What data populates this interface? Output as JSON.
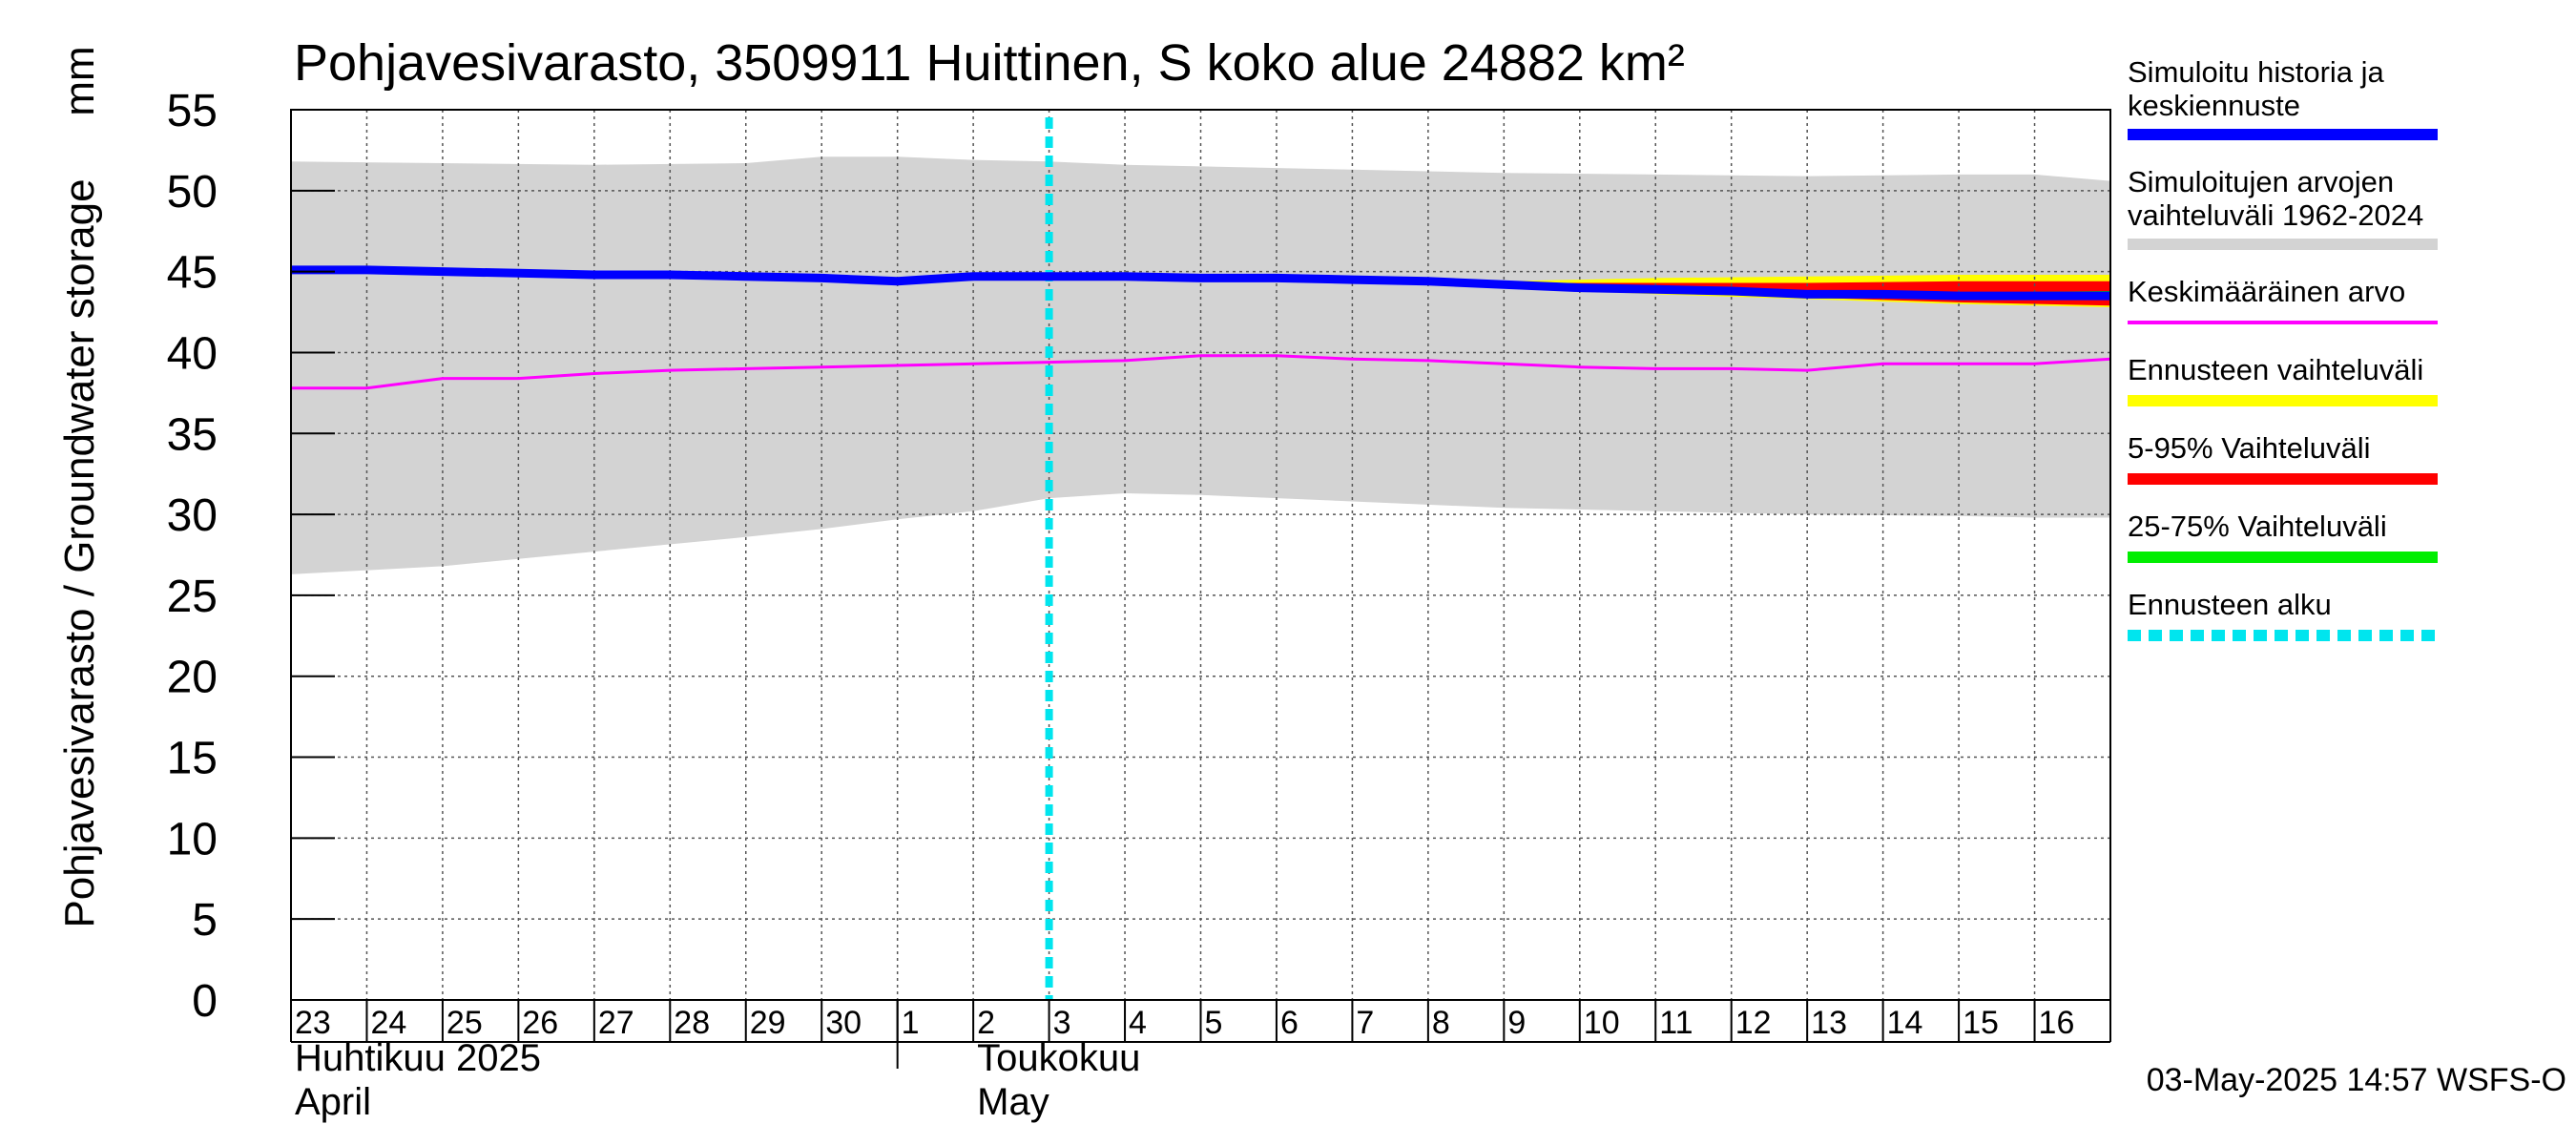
{
  "chart_data": {
    "type": "area+line",
    "title": "Pohjavesivarasto, 3509911 Huittinen, S koko alue 24882 km²",
    "ylabel": "Pohjavesivarasto / Groundwater storage",
    "yunit": "mm",
    "ylim": [
      0,
      55
    ],
    "yticks": [
      0,
      5,
      10,
      15,
      20,
      25,
      30,
      35,
      40,
      45,
      50,
      55
    ],
    "xlim": [
      0,
      24
    ],
    "day_labels": [
      "23",
      "24",
      "25",
      "26",
      "27",
      "28",
      "29",
      "30",
      "1",
      "2",
      "3",
      "4",
      "5",
      "6",
      "7",
      "8",
      "9",
      "10",
      "11",
      "12",
      "13",
      "14",
      "15",
      "16"
    ],
    "month_labels": [
      {
        "line1": "Huhtikuu  2025",
        "line2": "April",
        "at_day_index": 0
      },
      {
        "line1": "Toukokuu",
        "line2": "May",
        "at_day_index": 9
      }
    ],
    "month_boundary_x": 8,
    "forecast_start_x": 10.0,
    "footer": "03-May-2025 14:57 WSFS-O",
    "grid": true,
    "series": [
      {
        "name": "Simuloitujen arvojen vaihteluväli 1962-2024",
        "kind": "band",
        "color": "#d3d3d3",
        "x": [
          0,
          2,
          4,
          6,
          7,
          8,
          9,
          10,
          11,
          12,
          14,
          16,
          18,
          20,
          22,
          23,
          24
        ],
        "upper": [
          51.8,
          51.7,
          51.6,
          51.7,
          52.1,
          52.1,
          51.9,
          51.8,
          51.6,
          51.5,
          51.3,
          51.1,
          51.0,
          50.9,
          51.0,
          51.0,
          50.6
        ],
        "lower": [
          26.3,
          26.8,
          27.7,
          28.6,
          29.1,
          29.7,
          30.2,
          31.0,
          31.3,
          31.2,
          30.8,
          30.4,
          30.2,
          30.0,
          29.9,
          29.8,
          29.8
        ]
      },
      {
        "name": "Ennusteen vaihteluväli",
        "kind": "band",
        "color": "#ffff00",
        "x": [
          16,
          18,
          20,
          22,
          24
        ],
        "upper": [
          44.4,
          44.6,
          44.7,
          44.8,
          44.8
        ],
        "lower": [
          44.0,
          43.6,
          43.3,
          43.0,
          42.8
        ]
      },
      {
        "name": "5-95% Vaihteluväli",
        "kind": "band",
        "color": "#ff0000",
        "x": [
          16,
          18,
          20,
          22,
          24
        ],
        "upper": [
          44.3,
          44.3,
          44.3,
          44.4,
          44.4
        ],
        "lower": [
          44.0,
          43.7,
          43.4,
          43.1,
          42.9
        ]
      },
      {
        "name": "25-75% Vaihteluväli",
        "kind": "band",
        "color": "#00cc00",
        "x": [
          16,
          18,
          20,
          22,
          24
        ],
        "upper": [
          44.2,
          44.0,
          43.8,
          43.7,
          43.8
        ],
        "lower": [
          44.0,
          43.7,
          43.5,
          43.4,
          43.4
        ]
      },
      {
        "name": "Keskimääräinen arvo",
        "kind": "line",
        "color": "#ff00ff",
        "width": 3,
        "x": [
          0,
          1,
          2,
          3,
          4,
          5,
          6,
          7,
          8,
          9,
          10,
          11,
          12,
          13,
          14,
          15,
          16,
          17,
          18,
          19,
          20,
          21,
          22,
          23,
          24
        ],
        "y": [
          37.8,
          37.8,
          38.4,
          38.4,
          38.7,
          38.9,
          39.0,
          39.1,
          39.2,
          39.3,
          39.4,
          39.5,
          39.8,
          39.8,
          39.6,
          39.5,
          39.3,
          39.1,
          39.0,
          39.0,
          38.9,
          39.3,
          39.3,
          39.3,
          39.6
        ]
      },
      {
        "name": "Simuloitu historia ja keskiennuste",
        "kind": "line",
        "color": "#0000ff",
        "width": 9,
        "x": [
          0,
          1,
          2,
          3,
          4,
          5,
          6,
          7,
          8,
          9,
          10,
          11,
          12,
          13,
          14,
          15,
          16,
          17,
          18,
          19,
          20,
          21,
          22,
          23,
          24
        ],
        "y": [
          45.1,
          45.1,
          45.0,
          44.9,
          44.8,
          44.8,
          44.7,
          44.6,
          44.4,
          44.7,
          44.7,
          44.7,
          44.6,
          44.6,
          44.5,
          44.4,
          44.2,
          44.0,
          43.9,
          43.8,
          43.6,
          43.6,
          43.5,
          43.5,
          43.5
        ]
      }
    ]
  },
  "legend": {
    "items": [
      {
        "line1": "Simuloitu historia ja",
        "line2": "keskiennuste",
        "color": "#0000ff",
        "style": "solid"
      },
      {
        "line1": "Simuloitujen arvojen",
        "line2": "vaihteluväli 1962-2024",
        "color": "#d3d3d3",
        "style": "solid"
      },
      {
        "line1": "Keskimääräinen arvo",
        "line2": "",
        "color": "#ff00ff",
        "style": "thin"
      },
      {
        "line1": "Ennusteen vaihteluväli",
        "line2": "",
        "color": "#ffff00",
        "style": "solid"
      },
      {
        "line1": "5-95% Vaihteluväli",
        "line2": "",
        "color": "#ff0000",
        "style": "solid"
      },
      {
        "line1": "25-75% Vaihteluväli",
        "line2": "",
        "color": "#00ee00",
        "style": "solid"
      },
      {
        "line1": "Ennusteen alku",
        "line2": "",
        "color": "#00e5ee",
        "style": "dashed"
      }
    ]
  }
}
